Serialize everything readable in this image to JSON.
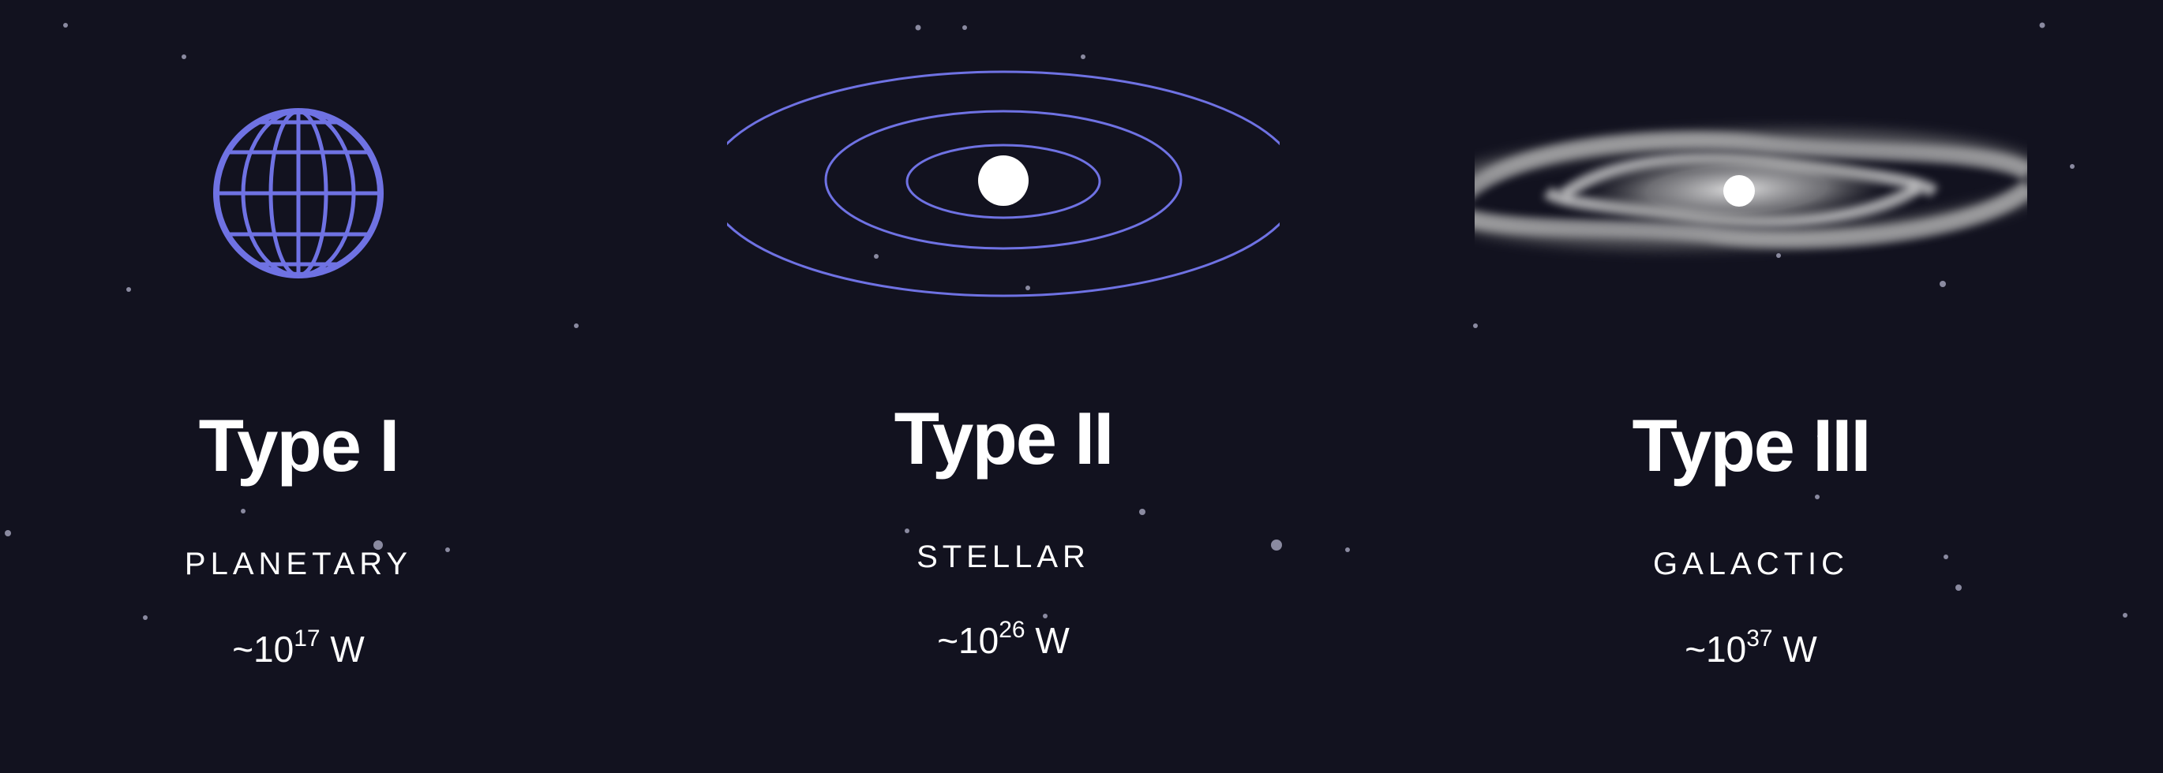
{
  "colors": {
    "background": "#12121f",
    "accent": "#6f72e3",
    "text": "#ffffff"
  },
  "types": [
    {
      "icon": "globe-icon",
      "title": "Type I",
      "category": "PLANETARY",
      "power_prefix": "~10",
      "power_exponent": "17",
      "power_unit": " W"
    },
    {
      "icon": "star-system-icon",
      "title": "Type II",
      "category": "STELLAR",
      "power_prefix": "~10",
      "power_exponent": "26",
      "power_unit": " W"
    },
    {
      "icon": "galaxy-icon",
      "title": "Type III",
      "category": "GALACTIC",
      "power_prefix": "~10",
      "power_exponent": "37",
      "power_unit": " W"
    }
  ]
}
